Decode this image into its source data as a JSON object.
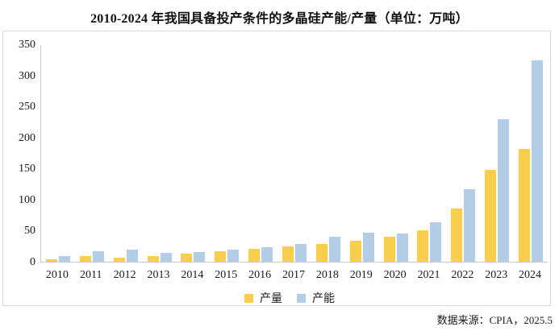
{
  "title": "2010-2024 年我国具备投产条件的多晶硅产能/产量（单位：万吨）",
  "source_note": "数据来源：CPIA，2025.5",
  "legend": {
    "production": "产量",
    "capacity": "产能"
  },
  "colors": {
    "production": "#F9CE4D",
    "capacity": "#B3CDE9",
    "frame_border": "#D9D9D9",
    "axis_line": "#C9C9C9",
    "text": "#1A1A1A"
  },
  "chart_data": {
    "type": "bar",
    "title": "2010-2024 年我国具备投产条件的多晶硅产能/产量（单位：万吨）",
    "unit": "万吨",
    "categories": [
      "2010",
      "2011",
      "2012",
      "2013",
      "2014",
      "2015",
      "2016",
      "2017",
      "2018",
      "2019",
      "2020",
      "2021",
      "2022",
      "2023",
      "2024"
    ],
    "series": [
      {
        "name": "产量",
        "key": "production",
        "color": "#F9CE4D",
        "values": [
          4.5,
          8.5,
          7,
          9,
          13.5,
          17,
          21,
          25,
          29,
          34,
          40,
          51,
          85,
          148,
          182
        ]
      },
      {
        "name": "产能",
        "key": "capacity",
        "color": "#B3CDE9",
        "values": [
          9,
          17,
          19.5,
          14.5,
          16,
          20,
          23,
          28.5,
          40,
          47,
          46,
          63,
          117,
          230,
          324
        ]
      }
    ],
    "ylim": [
      0,
      350
    ],
    "yticks": [
      0,
      50,
      100,
      150,
      200,
      250,
      300,
      350
    ],
    "grid": false,
    "legend_position": "bottom",
    "source": "数据来源：CPIA，2025.5"
  }
}
